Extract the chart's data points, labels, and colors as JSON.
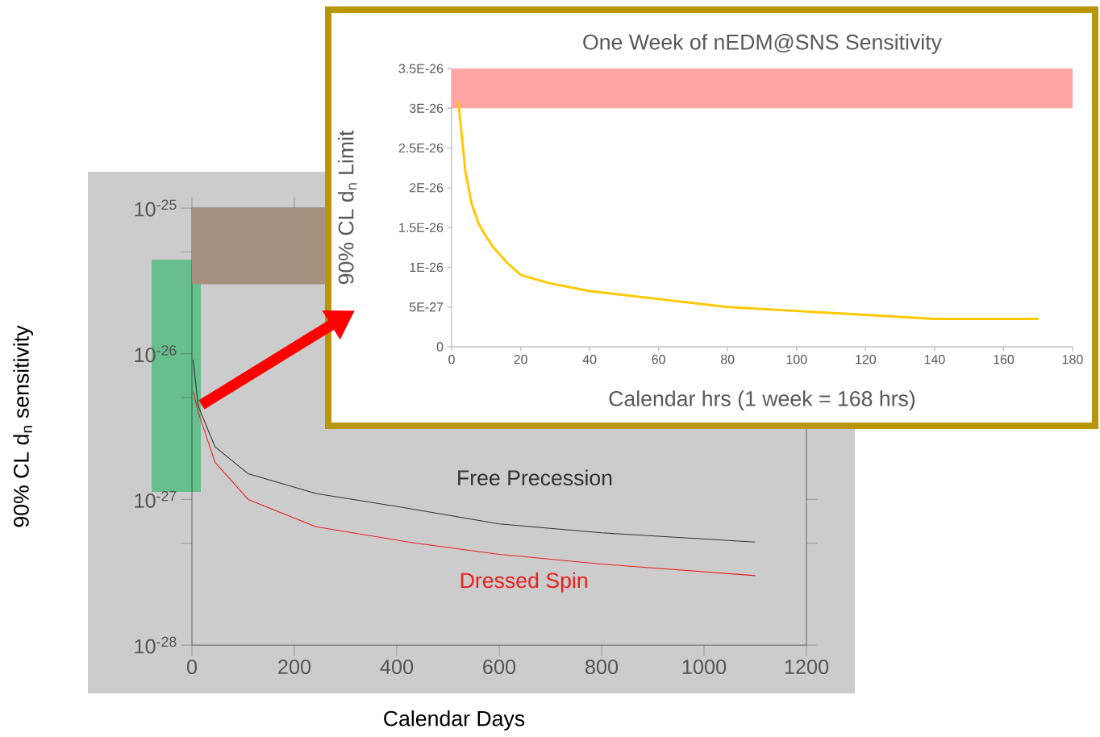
{
  "chart_data": [
    {
      "type": "line",
      "xlabel": "Calendar Days",
      "ylabel": "90% CL d$_{n}$ sensitivity",
      "log": "y",
      "xlim": [
        0,
        1200
      ],
      "ylim": [
        1e-28,
        1e-25
      ],
      "xticks": [
        0,
        200,
        400,
        600,
        800,
        1000,
        1200
      ],
      "yticks": [
        {
          "value": 1e-28,
          "label": "10$^{-28}$"
        },
        {
          "value": 5e-28,
          "label": null
        },
        {
          "value": 1e-27,
          "label": "10$^{-27}$"
        },
        {
          "value": 5e-27,
          "label": null
        },
        {
          "value": 1e-26,
          "label": "10$^{-26}$"
        },
        {
          "value": 5e-26,
          "label": null
        },
        {
          "value": 1e-25,
          "label": "10$^{-25}$"
        }
      ],
      "x": [
        2.5,
        12,
        45,
        110,
        242,
        439,
        600,
        800,
        1100
      ],
      "series": [
        {
          "name": "Free Precession",
          "color": "#333333",
          "values": [
            9.1e-27,
            4.4e-27,
            2.3e-27,
            1.5e-27,
            1.1e-27,
            8.5e-28,
            6.8e-28,
            5.9e-28,
            5.1e-28
          ]
        },
        {
          "name": "Dressed Spin",
          "color": "#e8211f",
          "values": [
            5.5e-27,
            4e-27,
            1.8e-27,
            1e-27,
            6.5e-28,
            5e-28,
            4.2e-28,
            3.6e-28,
            3e-28
          ]
        }
      ],
      "bands": [
        {
          "axis": "y",
          "from": 3e-26,
          "to": 1e-25,
          "color": "#a8907e"
        }
      ]
    },
    {
      "type": "line",
      "title": "One Week of nEDM@SNS Sensitivity",
      "xlabel": "Calendar hrs (1 week = 168 hrs)",
      "ylabel": "90% CL d$_{n}$ Limit",
      "xlim": [
        0,
        180
      ],
      "ylim": [
        0,
        3.5e-26
      ],
      "xticks": [
        0,
        20,
        40,
        60,
        80,
        100,
        120,
        140,
        160,
        180
      ],
      "yticks": [
        0,
        {
          "value": 5e-27,
          "label": "5E-27"
        },
        {
          "value": 1e-26,
          "label": "1E-26"
        },
        {
          "value": 1.5e-26,
          "label": "1.5E-26"
        },
        {
          "value": 2e-26,
          "label": "2E-26"
        },
        {
          "value": 2.5e-26,
          "label": "2.5E-26"
        },
        {
          "value": 3e-26,
          "label": "3E-26"
        },
        {
          "value": 3.5e-26,
          "label": "3.5E-26"
        }
      ],
      "x": [
        1.9,
        4.0,
        5.8,
        7.8,
        9.8,
        12.1,
        16.2,
        20.2,
        28.3,
        40,
        60,
        80,
        100,
        120,
        140,
        160,
        170.1
      ],
      "series": [
        {
          "color": "#ffc800",
          "values": [
            3.1e-26,
            2.2e-26,
            1.8e-26,
            1.55e-26,
            1.4e-26,
            1.25e-26,
            1.05e-26,
            9e-27,
            8e-27,
            7e-27,
            6e-27,
            5e-27,
            4.5e-27,
            4e-27,
            3.5e-27,
            3.5e-27,
            3.5e-27
          ]
        }
      ],
      "bands": [
        {
          "axis": "y",
          "from": 3e-26,
          "to": 3.5e-26,
          "color": "#ffa5a5"
        }
      ]
    }
  ]
}
